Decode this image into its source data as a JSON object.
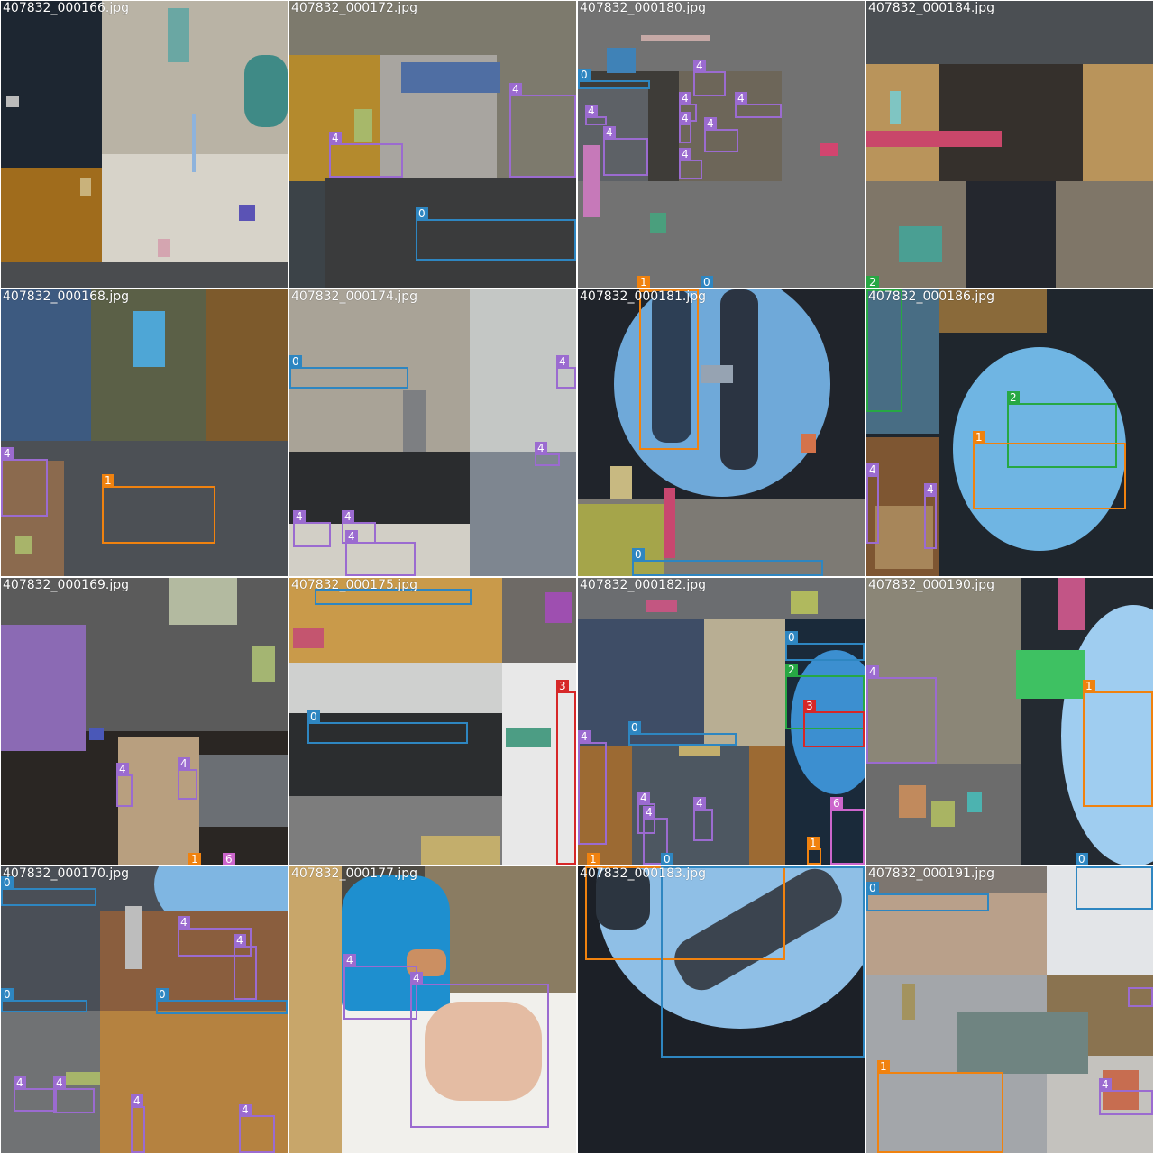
{
  "colors": {
    "0": "#2e86c1",
    "1": "#f0820f",
    "2": "#27a844",
    "3": "#d62728",
    "4": "#9b6bd0",
    "6": "#cc66cc"
  },
  "tiles": [
    {
      "filename": "407832_000166.jpg",
      "labels": []
    },
    {
      "filename": "407832_000172.jpg",
      "labels": [
        "4",
        "4",
        "0"
      ]
    },
    {
      "filename": "407832_000180.jpg",
      "labels": [
        "0",
        "4",
        "4",
        "4",
        "4",
        "4",
        "4",
        "4",
        "4",
        "1",
        "0"
      ]
    },
    {
      "filename": "407832_000184.jpg",
      "labels": [
        "2"
      ]
    },
    {
      "filename": "407832_000168.jpg",
      "labels": [
        "4",
        "1"
      ]
    },
    {
      "filename": "407832_000174.jpg",
      "labels": [
        "0",
        "4",
        "4",
        "4",
        "4",
        "4"
      ]
    },
    {
      "filename": "407832_000181.jpg",
      "labels": [
        "1",
        "0"
      ]
    },
    {
      "filename": "407832_000186.jpg",
      "labels": [
        "2",
        "1",
        "4",
        "4"
      ]
    },
    {
      "filename": "407832_000169.jpg",
      "labels": [
        "4",
        "4",
        "1",
        "6"
      ]
    },
    {
      "filename": "407832_000175.jpg",
      "labels": [
        "0",
        "3"
      ]
    },
    {
      "filename": "407832_000182.jpg",
      "labels": [
        "0",
        "2",
        "3",
        "0",
        "4",
        "4",
        "4",
        "4",
        "6",
        "1",
        "0",
        "1"
      ]
    },
    {
      "filename": "407832_000190.jpg",
      "labels": [
        "4",
        "1",
        "0"
      ]
    },
    {
      "filename": "407832_000170.jpg",
      "labels": [
        "0",
        "4",
        "4",
        "0",
        "0",
        "4",
        "4",
        "4",
        "4"
      ]
    },
    {
      "filename": "407832_000177.jpg",
      "labels": [
        "4",
        "4"
      ]
    },
    {
      "filename": "407832_000183.jpg",
      "labels": []
    },
    {
      "filename": "407832_000191.jpg",
      "labels": [
        "0",
        "4",
        "1",
        "4"
      ]
    }
  ]
}
